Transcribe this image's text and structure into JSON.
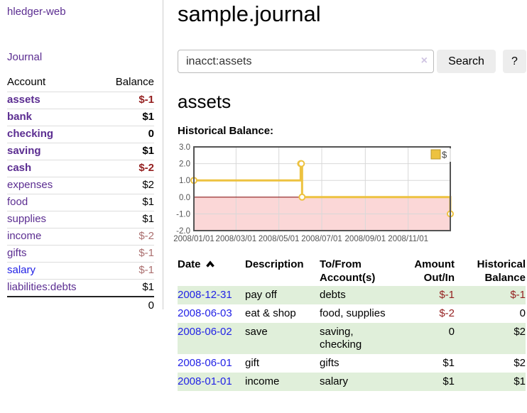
{
  "sidebar": {
    "app_title": "hledger-web",
    "journal_label": "Journal",
    "accounts": {
      "headers": [
        "Account",
        "Balance"
      ],
      "rows": [
        {
          "name": "assets",
          "depth": 1,
          "bold": true,
          "balance": "$-1",
          "neg": "strong"
        },
        {
          "name": "bank",
          "depth": 2,
          "bold": true,
          "balance": "$1"
        },
        {
          "name": "checking",
          "depth": 3,
          "bold": true,
          "balance": "0"
        },
        {
          "name": "saving",
          "depth": 3,
          "bold": true,
          "balance": "$1"
        },
        {
          "name": "cash",
          "depth": 2,
          "bold": true,
          "balance": "$-2",
          "neg": "strong"
        },
        {
          "name": "expenses",
          "depth": 1,
          "bold": false,
          "balance": "$2"
        },
        {
          "name": "food",
          "depth": 2,
          "bold": false,
          "balance": "$1"
        },
        {
          "name": "supplies",
          "depth": 2,
          "bold": false,
          "balance": "$1"
        },
        {
          "name": "income",
          "depth": 1,
          "bold": false,
          "balance": "$-2",
          "neg": "soft"
        },
        {
          "name": "gifts",
          "depth": 2,
          "bold": false,
          "balance": "$-1",
          "neg": "soft"
        },
        {
          "name": "salary",
          "depth": 2,
          "bold": false,
          "balance": "$-1",
          "neg": "soft",
          "unvisited": true
        },
        {
          "name": "liabilities:debts",
          "depth": 1,
          "bold": false,
          "balance": "$1"
        }
      ],
      "total": "0"
    }
  },
  "main": {
    "title": "sample.journal",
    "search": {
      "value": "inacct:assets",
      "clear_icon": "×",
      "button_label": "Search",
      "help_label": "?"
    },
    "account_heading": "assets",
    "chart_label": "Historical Balance:"
  },
  "chart_data": {
    "type": "line",
    "step": true,
    "title": "Historical Balance",
    "series": [
      {
        "name": "$",
        "color": "#edc240",
        "points": [
          [
            "2008-01-01",
            1
          ],
          [
            "2008-06-01",
            2
          ],
          [
            "2008-06-02",
            2
          ],
          [
            "2008-06-03",
            0
          ],
          [
            "2008-12-31",
            -1
          ]
        ]
      }
    ],
    "x_domain": [
      "2008-01-01",
      "2008-12-31"
    ],
    "ylim": [
      -2,
      3
    ],
    "y_ticks": [
      {
        "label": "3.0",
        "value": 3
      },
      {
        "label": "2.0",
        "value": 2
      },
      {
        "label": "1.0",
        "value": 1
      },
      {
        "label": "0.0",
        "value": 0
      },
      {
        "label": "-1.0",
        "value": -1
      },
      {
        "label": "-2.0",
        "value": -2
      }
    ],
    "x_ticks": [
      {
        "label": "2008/01/01",
        "date": "2008-01-01"
      },
      {
        "label": "2008/03/01",
        "date": "2008-03-01"
      },
      {
        "label": "2008/05/01",
        "date": "2008-05-01"
      },
      {
        "label": "2008/07/01",
        "date": "2008-07-01"
      },
      {
        "label": "2008/09/01",
        "date": "2008-09-01"
      },
      {
        "label": "2008/11/01",
        "date": "2008-11-01"
      }
    ],
    "grid": true,
    "legend_position": "top-right",
    "negative_region_color": "#fbd7d7",
    "zero_line_color": "#8b1a1a",
    "grid_color": "#d8d8d8",
    "border_color": "#545454",
    "tick_label_color": "#545454"
  },
  "register": {
    "headers": [
      "Date",
      "Description",
      "To/From Account(s)",
      "Amount Out/In",
      "Historical Balance"
    ],
    "sort_icon": "chevron-up",
    "rows": [
      {
        "date": "2008-12-31",
        "description": "pay off",
        "accounts": [
          "debts"
        ],
        "stack": false,
        "amount": "$-1",
        "amount_neg": true,
        "balance": "$-1",
        "balance_neg": true
      },
      {
        "date": "2008-06-03",
        "description": "eat & shop",
        "accounts": [
          "food",
          "supplies"
        ],
        "stack": false,
        "amount": "$-2",
        "amount_neg": true,
        "balance": "0",
        "balance_neg": false
      },
      {
        "date": "2008-06-02",
        "description": "save",
        "accounts": [
          "saving",
          "checking"
        ],
        "stack": true,
        "amount": "0",
        "amount_neg": false,
        "balance": "$2",
        "balance_neg": false
      },
      {
        "date": "2008-06-01",
        "description": "gift",
        "accounts": [
          "gifts"
        ],
        "stack": false,
        "amount": "$1",
        "amount_neg": false,
        "balance": "$2",
        "balance_neg": false
      },
      {
        "date": "2008-01-01",
        "description": "income",
        "accounts": [
          "salary"
        ],
        "stack": false,
        "amount": "$1",
        "amount_neg": false,
        "balance": "$1",
        "balance_neg": false
      }
    ]
  }
}
